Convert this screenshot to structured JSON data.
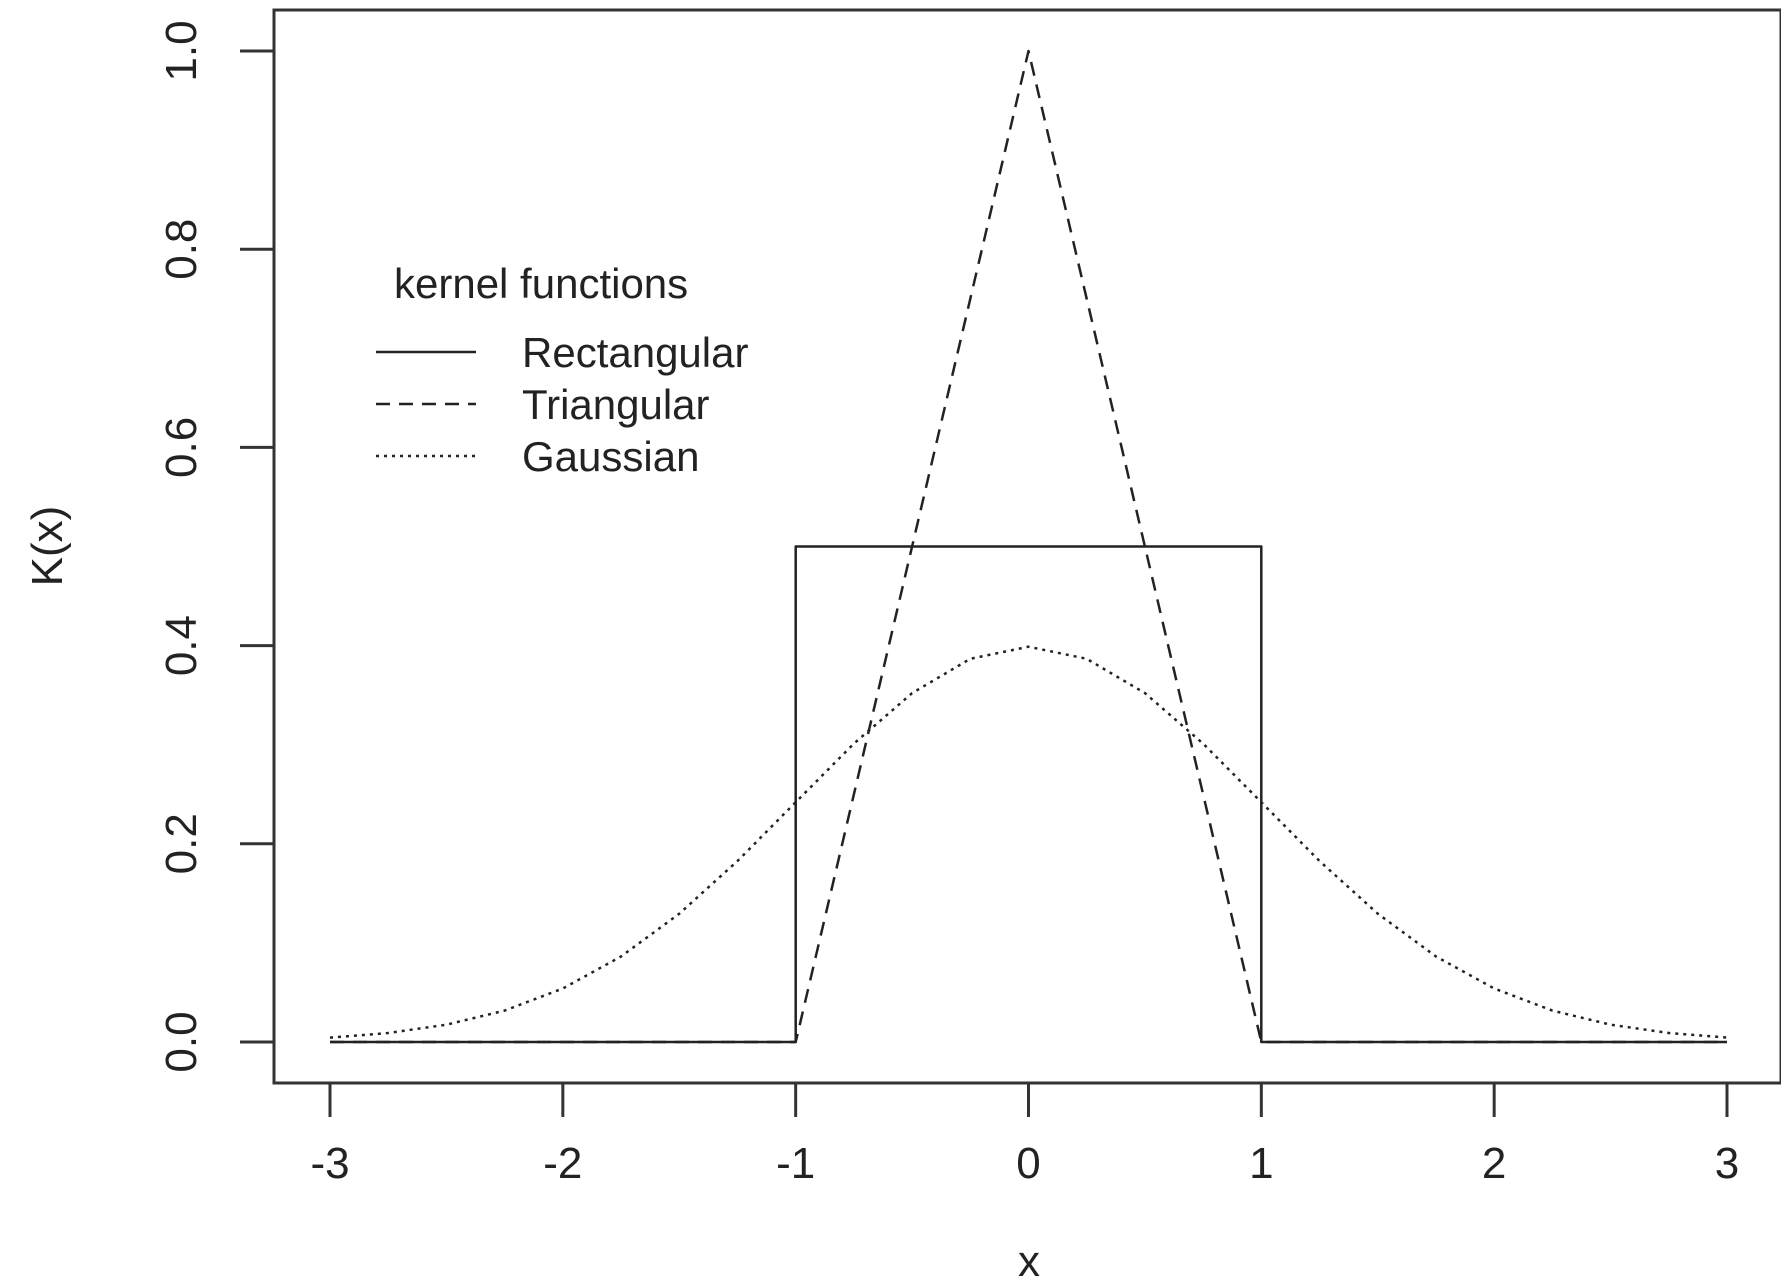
{
  "chart_data": {
    "type": "line",
    "title": "",
    "xlabel": "x",
    "ylabel": "K(x)",
    "xlim": [
      -3,
      3
    ],
    "ylim": [
      0,
      1
    ],
    "x_ticks": [
      -3,
      -2,
      -1,
      0,
      1,
      2,
      3
    ],
    "x_tick_labels": [
      "-3",
      "-2",
      "-1",
      "0",
      "1",
      "2",
      "3"
    ],
    "y_ticks": [
      0,
      0.2,
      0.4,
      0.6,
      0.8,
      1
    ],
    "y_tick_labels": [
      "0.0",
      "0.2",
      "0.4",
      "0.6",
      "0.8",
      "1.0"
    ],
    "grid": false,
    "legend": {
      "title": "kernel functions",
      "position": "top-left"
    },
    "series": [
      {
        "name": "Rectangular",
        "style": "solid",
        "color": "#222222",
        "x": [
          -3,
          -1,
          -1,
          1,
          1,
          3
        ],
        "y": [
          0,
          0,
          0.5,
          0.5,
          0,
          0
        ]
      },
      {
        "name": "Triangular",
        "style": "dashed",
        "color": "#222222",
        "x": [
          -3,
          -1,
          0,
          1,
          3
        ],
        "y": [
          0,
          0,
          1,
          0,
          0
        ]
      },
      {
        "name": "Gaussian",
        "style": "dotted",
        "color": "#222222",
        "x": [
          -3,
          -2.75,
          -2.5,
          -2.25,
          -2,
          -1.75,
          -1.5,
          -1.25,
          -1,
          -0.75,
          -0.5,
          -0.25,
          0,
          0.25,
          0.5,
          0.75,
          1,
          1.25,
          1.5,
          1.75,
          2,
          2.25,
          2.5,
          2.75,
          3
        ],
        "y": [
          0.0044,
          0.0091,
          0.0175,
          0.0317,
          0.054,
          0.0863,
          0.1295,
          0.1826,
          0.242,
          0.3011,
          0.3521,
          0.3867,
          0.3989,
          0.3867,
          0.3521,
          0.3011,
          0.242,
          0.1826,
          0.1295,
          0.0863,
          0.054,
          0.0317,
          0.0175,
          0.0091,
          0.0044
        ]
      }
    ]
  }
}
